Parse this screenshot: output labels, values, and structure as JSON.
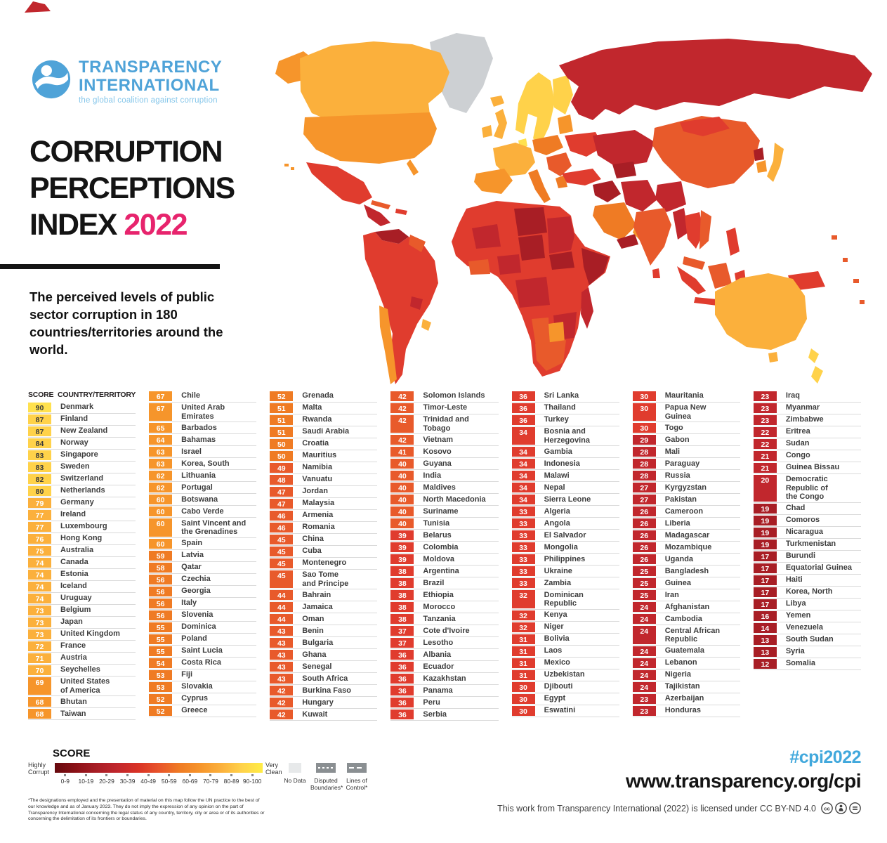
{
  "header": {
    "logo_line1": "TRANSPARENCY",
    "logo_line2": "INTERNATIONAL",
    "logo_tagline": "the global coalition against corruption",
    "title_line1": "CORRUPTION",
    "title_line2": "PERCEPTIONS",
    "title_line3": "INDEX",
    "title_year": "2022",
    "subtitle": "The perceived levels of public sector corruption in 180 countries/territories around the world."
  },
  "table": {
    "score_header": "SCORE",
    "country_header": "COUNTRY/TERRITORY"
  },
  "chart_data": {
    "type": "table",
    "title": "Corruption Perceptions Index 2022",
    "value_label": "CPI score, 0 = highly corrupt, 100 = very clean",
    "groups": [
      [
        {
          "s": 90,
          "n": "Denmark"
        },
        {
          "s": 87,
          "n": "Finland"
        },
        {
          "s": 87,
          "n": "New Zealand"
        },
        {
          "s": 84,
          "n": "Norway"
        },
        {
          "s": 83,
          "n": "Singapore"
        },
        {
          "s": 83,
          "n": "Sweden"
        },
        {
          "s": 82,
          "n": "Switzerland"
        },
        {
          "s": 80,
          "n": "Netherlands"
        },
        {
          "s": 79,
          "n": "Germany"
        },
        {
          "s": 77,
          "n": "Ireland"
        },
        {
          "s": 77,
          "n": "Luxembourg"
        },
        {
          "s": 76,
          "n": "Hong Kong"
        },
        {
          "s": 75,
          "n": "Australia"
        },
        {
          "s": 74,
          "n": "Canada"
        },
        {
          "s": 74,
          "n": "Estonia"
        },
        {
          "s": 74,
          "n": "Iceland"
        },
        {
          "s": 74,
          "n": "Uruguay"
        },
        {
          "s": 73,
          "n": "Belgium"
        },
        {
          "s": 73,
          "n": "Japan"
        },
        {
          "s": 73,
          "n": "United Kingdom"
        },
        {
          "s": 72,
          "n": "France"
        },
        {
          "s": 71,
          "n": "Austria"
        },
        {
          "s": 70,
          "n": "Seychelles"
        },
        {
          "s": 69,
          "n": "United States\nof America"
        },
        {
          "s": 68,
          "n": "Bhutan"
        },
        {
          "s": 68,
          "n": "Taiwan"
        }
      ],
      [
        {
          "s": 67,
          "n": "Chile"
        },
        {
          "s": 67,
          "n": "United Arab\nEmirates"
        },
        {
          "s": 65,
          "n": "Barbados"
        },
        {
          "s": 64,
          "n": "Bahamas"
        },
        {
          "s": 63,
          "n": "Israel"
        },
        {
          "s": 63,
          "n": "Korea, South"
        },
        {
          "s": 62,
          "n": "Lithuania"
        },
        {
          "s": 62,
          "n": "Portugal"
        },
        {
          "s": 60,
          "n": "Botswana"
        },
        {
          "s": 60,
          "n": "Cabo Verde"
        },
        {
          "s": 60,
          "n": "Saint Vincent and\nthe Grenadines"
        },
        {
          "s": 60,
          "n": "Spain"
        },
        {
          "s": 59,
          "n": "Latvia"
        },
        {
          "s": 58,
          "n": "Qatar"
        },
        {
          "s": 56,
          "n": "Czechia"
        },
        {
          "s": 56,
          "n": "Georgia"
        },
        {
          "s": 56,
          "n": "Italy"
        },
        {
          "s": 56,
          "n": "Slovenia"
        },
        {
          "s": 55,
          "n": "Dominica"
        },
        {
          "s": 55,
          "n": "Poland"
        },
        {
          "s": 55,
          "n": "Saint Lucia"
        },
        {
          "s": 54,
          "n": "Costa Rica"
        },
        {
          "s": 53,
          "n": "Fiji"
        },
        {
          "s": 53,
          "n": "Slovakia"
        },
        {
          "s": 52,
          "n": "Cyprus"
        },
        {
          "s": 52,
          "n": "Greece"
        }
      ],
      [
        {
          "s": 52,
          "n": "Grenada"
        },
        {
          "s": 51,
          "n": "Malta"
        },
        {
          "s": 51,
          "n": "Rwanda"
        },
        {
          "s": 51,
          "n": "Saudi Arabia"
        },
        {
          "s": 50,
          "n": "Croatia"
        },
        {
          "s": 50,
          "n": "Mauritius"
        },
        {
          "s": 49,
          "n": "Namibia"
        },
        {
          "s": 48,
          "n": "Vanuatu"
        },
        {
          "s": 47,
          "n": "Jordan"
        },
        {
          "s": 47,
          "n": "Malaysia"
        },
        {
          "s": 46,
          "n": "Armenia"
        },
        {
          "s": 46,
          "n": "Romania"
        },
        {
          "s": 45,
          "n": "China"
        },
        {
          "s": 45,
          "n": "Cuba"
        },
        {
          "s": 45,
          "n": "Montenegro"
        },
        {
          "s": 45,
          "n": "Sao Tome\nand Principe"
        },
        {
          "s": 44,
          "n": "Bahrain"
        },
        {
          "s": 44,
          "n": "Jamaica"
        },
        {
          "s": 44,
          "n": "Oman"
        },
        {
          "s": 43,
          "n": "Benin"
        },
        {
          "s": 43,
          "n": "Bulgaria"
        },
        {
          "s": 43,
          "n": "Ghana"
        },
        {
          "s": 43,
          "n": "Senegal"
        },
        {
          "s": 43,
          "n": "South Africa"
        },
        {
          "s": 42,
          "n": "Burkina Faso"
        },
        {
          "s": 42,
          "n": "Hungary"
        },
        {
          "s": 42,
          "n": "Kuwait"
        }
      ],
      [
        {
          "s": 42,
          "n": "Solomon Islands"
        },
        {
          "s": 42,
          "n": "Timor-Leste"
        },
        {
          "s": 42,
          "n": "Trinidad and\nTobago"
        },
        {
          "s": 42,
          "n": "Vietnam"
        },
        {
          "s": 41,
          "n": "Kosovo"
        },
        {
          "s": 40,
          "n": "Guyana"
        },
        {
          "s": 40,
          "n": "India"
        },
        {
          "s": 40,
          "n": "Maldives"
        },
        {
          "s": 40,
          "n": "North Macedonia"
        },
        {
          "s": 40,
          "n": "Suriname"
        },
        {
          "s": 40,
          "n": "Tunisia"
        },
        {
          "s": 39,
          "n": "Belarus"
        },
        {
          "s": 39,
          "n": "Colombia"
        },
        {
          "s": 39,
          "n": "Moldova"
        },
        {
          "s": 38,
          "n": "Argentina"
        },
        {
          "s": 38,
          "n": "Brazil"
        },
        {
          "s": 38,
          "n": "Ethiopia"
        },
        {
          "s": 38,
          "n": "Morocco"
        },
        {
          "s": 38,
          "n": "Tanzania"
        },
        {
          "s": 37,
          "n": "Cote d'Ivoire"
        },
        {
          "s": 37,
          "n": "Lesotho"
        },
        {
          "s": 36,
          "n": "Albania"
        },
        {
          "s": 36,
          "n": "Ecuador"
        },
        {
          "s": 36,
          "n": "Kazakhstan"
        },
        {
          "s": 36,
          "n": "Panama"
        },
        {
          "s": 36,
          "n": "Peru"
        },
        {
          "s": 36,
          "n": "Serbia"
        }
      ],
      [
        {
          "s": 36,
          "n": "Sri Lanka"
        },
        {
          "s": 36,
          "n": "Thailand"
        },
        {
          "s": 36,
          "n": "Turkey"
        },
        {
          "s": 34,
          "n": "Bosnia and\nHerzegovina"
        },
        {
          "s": 34,
          "n": "Gambia"
        },
        {
          "s": 34,
          "n": "Indonesia"
        },
        {
          "s": 34,
          "n": "Malawi"
        },
        {
          "s": 34,
          "n": "Nepal"
        },
        {
          "s": 34,
          "n": "Sierra Leone"
        },
        {
          "s": 33,
          "n": "Algeria"
        },
        {
          "s": 33,
          "n": "Angola"
        },
        {
          "s": 33,
          "n": "El Salvador"
        },
        {
          "s": 33,
          "n": "Mongolia"
        },
        {
          "s": 33,
          "n": "Philippines"
        },
        {
          "s": 33,
          "n": "Ukraine"
        },
        {
          "s": 33,
          "n": "Zambia"
        },
        {
          "s": 32,
          "n": "Dominican\nRepublic"
        },
        {
          "s": 32,
          "n": "Kenya"
        },
        {
          "s": 32,
          "n": "Niger"
        },
        {
          "s": 31,
          "n": "Bolivia"
        },
        {
          "s": 31,
          "n": "Laos"
        },
        {
          "s": 31,
          "n": "Mexico"
        },
        {
          "s": 31,
          "n": "Uzbekistan"
        },
        {
          "s": 30,
          "n": "Djibouti"
        },
        {
          "s": 30,
          "n": "Egypt"
        },
        {
          "s": 30,
          "n": "Eswatini"
        }
      ],
      [
        {
          "s": 30,
          "n": "Mauritania"
        },
        {
          "s": 30,
          "n": "Papua New\nGuinea"
        },
        {
          "s": 30,
          "n": "Togo"
        },
        {
          "s": 29,
          "n": "Gabon"
        },
        {
          "s": 28,
          "n": "Mali"
        },
        {
          "s": 28,
          "n": "Paraguay"
        },
        {
          "s": 28,
          "n": "Russia"
        },
        {
          "s": 27,
          "n": "Kyrgyzstan"
        },
        {
          "s": 27,
          "n": "Pakistan"
        },
        {
          "s": 26,
          "n": "Cameroon"
        },
        {
          "s": 26,
          "n": "Liberia"
        },
        {
          "s": 26,
          "n": "Madagascar"
        },
        {
          "s": 26,
          "n": "Mozambique"
        },
        {
          "s": 26,
          "n": "Uganda"
        },
        {
          "s": 25,
          "n": "Bangladesh"
        },
        {
          "s": 25,
          "n": "Guinea"
        },
        {
          "s": 25,
          "n": "Iran"
        },
        {
          "s": 24,
          "n": "Afghanistan"
        },
        {
          "s": 24,
          "n": "Cambodia"
        },
        {
          "s": 24,
          "n": "Central African\nRepublic"
        },
        {
          "s": 24,
          "n": "Guatemala"
        },
        {
          "s": 24,
          "n": "Lebanon"
        },
        {
          "s": 24,
          "n": "Nigeria"
        },
        {
          "s": 24,
          "n": "Tajikistan"
        },
        {
          "s": 23,
          "n": "Azerbaijan"
        },
        {
          "s": 23,
          "n": "Honduras"
        }
      ],
      [
        {
          "s": 23,
          "n": "Iraq"
        },
        {
          "s": 23,
          "n": "Myanmar"
        },
        {
          "s": 23,
          "n": "Zimbabwe"
        },
        {
          "s": 22,
          "n": "Eritrea"
        },
        {
          "s": 22,
          "n": "Sudan"
        },
        {
          "s": 21,
          "n": "Congo"
        },
        {
          "s": 21,
          "n": "Guinea Bissau"
        },
        {
          "s": 20,
          "n": "Democratic\nRepublic of\nthe Congo"
        },
        {
          "s": 19,
          "n": "Chad"
        },
        {
          "s": 19,
          "n": "Comoros"
        },
        {
          "s": 19,
          "n": "Nicaragua"
        },
        {
          "s": 19,
          "n": "Turkmenistan"
        },
        {
          "s": 17,
          "n": "Burundi"
        },
        {
          "s": 17,
          "n": "Equatorial Guinea"
        },
        {
          "s": 17,
          "n": "Haiti"
        },
        {
          "s": 17,
          "n": "Korea, North"
        },
        {
          "s": 17,
          "n": "Libya"
        },
        {
          "s": 16,
          "n": "Yemen"
        },
        {
          "s": 14,
          "n": "Venezuela"
        },
        {
          "s": 13,
          "n": "South Sudan"
        },
        {
          "s": 13,
          "n": "Syria"
        },
        {
          "s": 12,
          "n": "Somalia"
        }
      ]
    ]
  },
  "legend": {
    "title": "SCORE",
    "left_label": "Highly\nCorrupt",
    "right_label": "Very\nClean",
    "ticks": [
      "0-9",
      "10-19",
      "20-29",
      "30-39",
      "40-49",
      "50-59",
      "60-69",
      "70-79",
      "80-89",
      "90-100"
    ],
    "no_data_label": "No Data",
    "disputed_label": "Disputed\nBoundaries*",
    "lines_label": "Lines of\nControl*",
    "footnote": "*The designations employed and the presentation of material on this map follow the UN practice to the best of our knowledge and as of January 2023. They do not imply the expression of any opinion on the part of Transparency International concerning the legal status of any country, territory, city or area or of its authorities or concerning the delimitation of its frontiers or boundaries."
  },
  "footer": {
    "hashtag": "#cpi2022",
    "url": "www.transparency.org/cpi",
    "license": "This work from Transparency International (2022) is licensed under CC BY-ND 4.0"
  },
  "colors": {
    "accent_pink": "#E7246D",
    "brand_blue": "#4FA3D8",
    "brand_blue_light": "#85C6EA",
    "hashtag_blue": "#41A8DC",
    "no_data": "#E7E9EA",
    "boundary_box_gray": "#8A8F92",
    "score_scale": {
      "90": "#FFE14F",
      "80": "#FFD24A",
      "70": "#FBB03C",
      "60": "#F6952B",
      "50": "#EF7B24",
      "40": "#E85A2B",
      "30": "#E03C2E",
      "20": "#C1272D",
      "10": "#A81E25",
      "nodata": "#CDD0D3"
    },
    "gradient": [
      "#660A0E",
      "#8B1117",
      "#A81E25",
      "#C1272D",
      "#D93226",
      "#E8542B",
      "#EF7B24",
      "#F6952B",
      "#FBB03C",
      "#FFD24A",
      "#FFEC45"
    ]
  }
}
